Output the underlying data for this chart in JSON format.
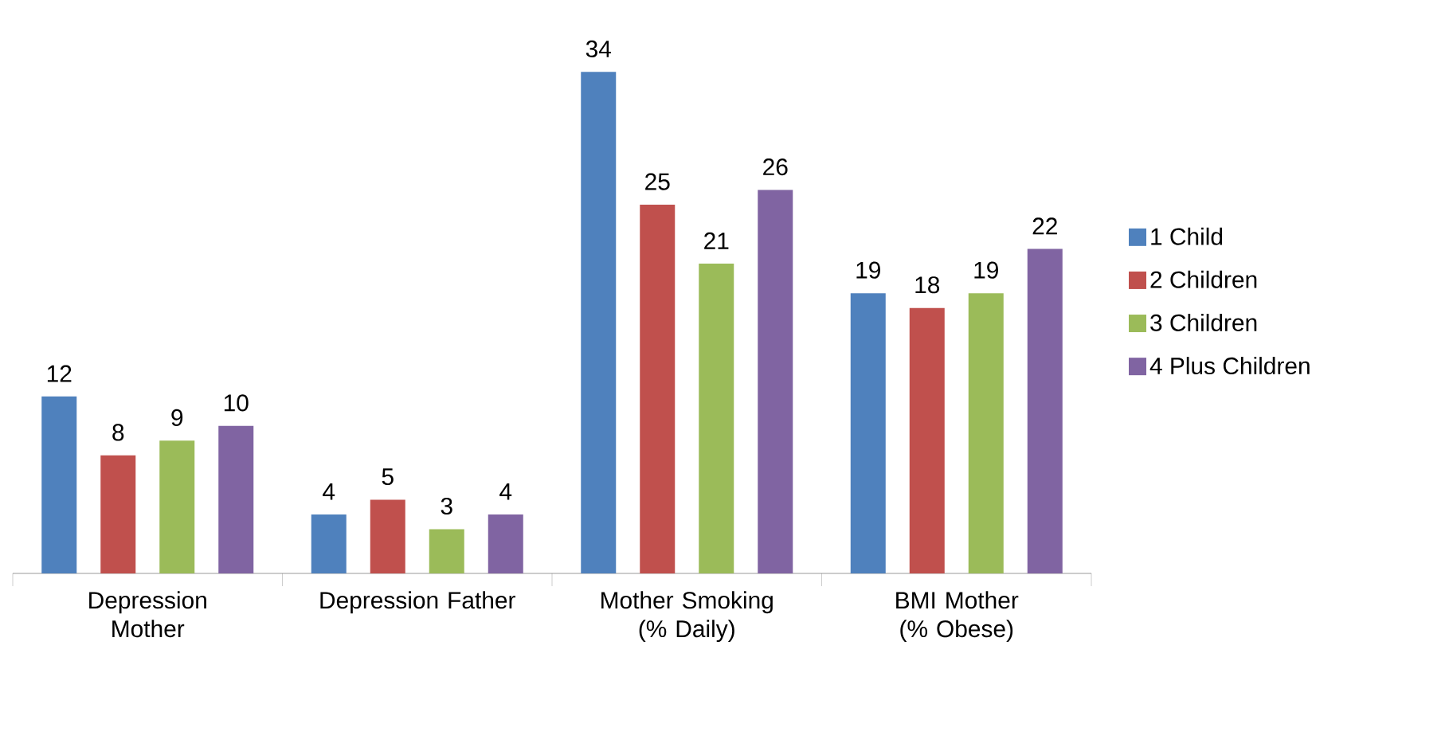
{
  "chart_data": {
    "type": "bar",
    "categories": [
      "Depression Mother",
      "Depression Father",
      "Mother Smoking (% Daily)",
      "BMI Mother (% Obese)"
    ],
    "series": [
      {
        "name": "1 Child",
        "color": "#4f81bd",
        "values": [
          12,
          4,
          34,
          19
        ]
      },
      {
        "name": "2 Children",
        "color": "#c0504d",
        "values": [
          8,
          5,
          25,
          18
        ]
      },
      {
        "name": "3 Children",
        "color": "#9bbb59",
        "values": [
          9,
          3,
          21,
          19
        ]
      },
      {
        "name": "4 Plus Children",
        "color": "#8064a2",
        "values": [
          10,
          4,
          26,
          22
        ]
      }
    ],
    "data_labels": true,
    "legend": "right"
  }
}
